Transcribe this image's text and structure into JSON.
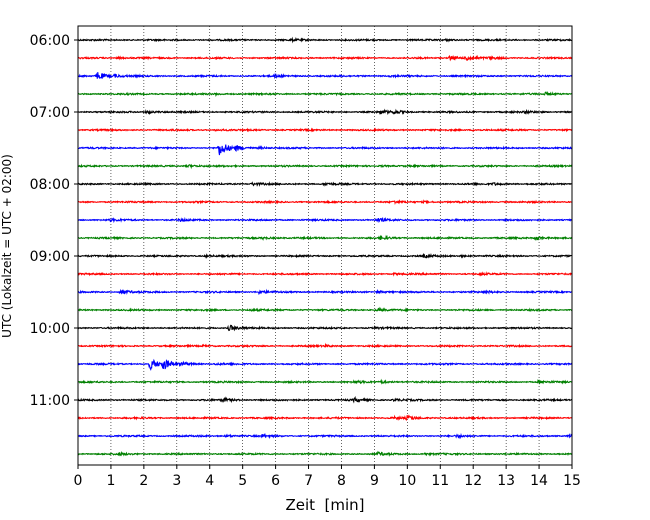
{
  "chart_data": {
    "type": "line",
    "title": "",
    "xlabel": "Zeit  [min]",
    "ylabel": "UTC (Lokalzeit = UTC + 02:00)",
    "xlim": [
      0,
      15
    ],
    "x_ticks": [
      0,
      1,
      2,
      3,
      4,
      5,
      6,
      7,
      8,
      9,
      10,
      11,
      12,
      13,
      14,
      15
    ],
    "x_tick_labels": [
      "0",
      "1",
      "2",
      "3",
      "4",
      "5",
      "6",
      "7",
      "8",
      "9",
      "10",
      "11",
      "12",
      "13",
      "14",
      "15"
    ],
    "y_tick_labels": [
      "06:00",
      "07:00",
      "08:00",
      "09:00",
      "10:00",
      "11:00"
    ],
    "grid": "vertical dotted lines at each minute",
    "row_minutes": 15,
    "trace_colors": [
      "#000000",
      "#ff0000",
      "#0000ff",
      "#008000"
    ],
    "rows": [
      {
        "start": "06:00",
        "events": [
          {
            "t": 6.5,
            "amp": 0.3
          },
          {
            "t": 11.2,
            "amp": 0.3
          }
        ]
      },
      {
        "start": "06:15",
        "events": [
          {
            "t": 11.3,
            "amp": 1.0
          },
          {
            "t": 11.8,
            "amp": 1.0
          },
          {
            "t": 12.5,
            "amp": 0.5
          },
          {
            "t": 1.2,
            "amp": 0.3
          }
        ]
      },
      {
        "start": "06:30",
        "events": [
          {
            "t": 0.6,
            "amp": 1.8
          },
          {
            "t": 1.1,
            "amp": 0.5
          },
          {
            "t": 6.0,
            "amp": 0.5
          },
          {
            "t": 9.5,
            "amp": 0.3
          }
        ]
      },
      {
        "start": "06:45",
        "events": [
          {
            "t": 14.2,
            "amp": 0.6
          },
          {
            "t": 4.2,
            "amp": 0.3
          }
        ]
      },
      {
        "start": "07:00",
        "events": [
          {
            "t": 2.1,
            "amp": 0.6
          },
          {
            "t": 9.2,
            "amp": 0.8
          },
          {
            "t": 9.6,
            "amp": 0.6
          },
          {
            "t": 13.6,
            "amp": 0.5
          }
        ]
      },
      {
        "start": "07:15",
        "events": [
          {
            "t": 4.2,
            "amp": 0.3
          },
          {
            "t": 12.0,
            "amp": 0.3
          }
        ]
      },
      {
        "start": "07:30",
        "events": [
          {
            "t": 4.3,
            "amp": 3.2
          },
          {
            "t": 4.8,
            "amp": 0.8
          },
          {
            "t": 5.5,
            "amp": 0.4
          }
        ]
      },
      {
        "start": "07:45",
        "events": [
          {
            "t": 3.3,
            "amp": 0.6
          },
          {
            "t": 9.2,
            "amp": 0.3
          }
        ]
      },
      {
        "start": "08:00",
        "events": [
          {
            "t": 5.3,
            "amp": 0.6
          },
          {
            "t": 7.5,
            "amp": 0.5
          },
          {
            "t": 12.6,
            "amp": 0.5
          }
        ]
      },
      {
        "start": "08:15",
        "events": [
          {
            "t": 9.6,
            "amp": 0.4
          },
          {
            "t": 10.5,
            "amp": 0.3
          }
        ]
      },
      {
        "start": "08:30",
        "events": [
          {
            "t": 1.0,
            "amp": 0.4
          },
          {
            "t": 3.1,
            "amp": 0.5
          },
          {
            "t": 9.1,
            "amp": 0.6
          }
        ]
      },
      {
        "start": "08:45",
        "events": [
          {
            "t": 5.6,
            "amp": 0.4
          },
          {
            "t": 9.2,
            "amp": 0.6
          },
          {
            "t": 13.9,
            "amp": 0.8
          }
        ]
      },
      {
        "start": "09:00",
        "events": [
          {
            "t": 3.9,
            "amp": 0.4
          },
          {
            "t": 10.5,
            "amp": 0.5
          },
          {
            "t": 11.6,
            "amp": 0.3
          }
        ]
      },
      {
        "start": "09:15",
        "events": [
          {
            "t": 9.6,
            "amp": 0.3
          },
          {
            "t": 12.2,
            "amp": 0.3
          }
        ]
      },
      {
        "start": "09:30",
        "events": [
          {
            "t": 1.3,
            "amp": 1.1
          },
          {
            "t": 5.5,
            "amp": 0.6
          },
          {
            "t": 9.1,
            "amp": 0.5
          },
          {
            "t": 12.4,
            "amp": 0.4
          }
        ]
      },
      {
        "start": "09:45",
        "events": [
          {
            "t": 5.2,
            "amp": 0.3
          },
          {
            "t": 9.1,
            "amp": 0.5
          }
        ]
      },
      {
        "start": "10:00",
        "events": [
          {
            "t": 4.6,
            "amp": 1.3
          },
          {
            "t": 9.0,
            "amp": 0.3
          }
        ]
      },
      {
        "start": "10:15",
        "events": [
          {
            "t": 3.8,
            "amp": 0.3
          },
          {
            "t": 7.5,
            "amp": 0.3
          }
        ]
      },
      {
        "start": "10:30",
        "events": [
          {
            "t": 2.2,
            "amp": 2.4
          },
          {
            "t": 2.6,
            "amp": 2.0
          },
          {
            "t": 3.2,
            "amp": 0.7
          },
          {
            "t": 4.2,
            "amp": 0.3
          }
        ]
      },
      {
        "start": "10:45",
        "events": [
          {
            "t": 8.4,
            "amp": 0.4
          },
          {
            "t": 9.2,
            "amp": 0.5
          },
          {
            "t": 14.0,
            "amp": 0.6
          }
        ]
      },
      {
        "start": "11:00",
        "events": [
          {
            "t": 4.4,
            "amp": 0.8
          },
          {
            "t": 8.4,
            "amp": 0.8
          },
          {
            "t": 9.6,
            "amp": 0.4
          }
        ]
      },
      {
        "start": "11:15",
        "events": [
          {
            "t": 10.0,
            "amp": 0.9
          },
          {
            "t": 9.6,
            "amp": 0.4
          }
        ]
      },
      {
        "start": "11:30",
        "events": [
          {
            "t": 4.5,
            "amp": 0.5
          },
          {
            "t": 5.6,
            "amp": 0.6
          },
          {
            "t": 11.5,
            "amp": 0.4
          },
          {
            "t": 14.9,
            "amp": 0.6
          }
        ]
      },
      {
        "start": "11:45",
        "events": [
          {
            "t": 1.2,
            "amp": 0.5
          },
          {
            "t": 9.1,
            "amp": 0.7
          },
          {
            "t": 10.5,
            "amp": 0.4
          }
        ]
      }
    ]
  }
}
